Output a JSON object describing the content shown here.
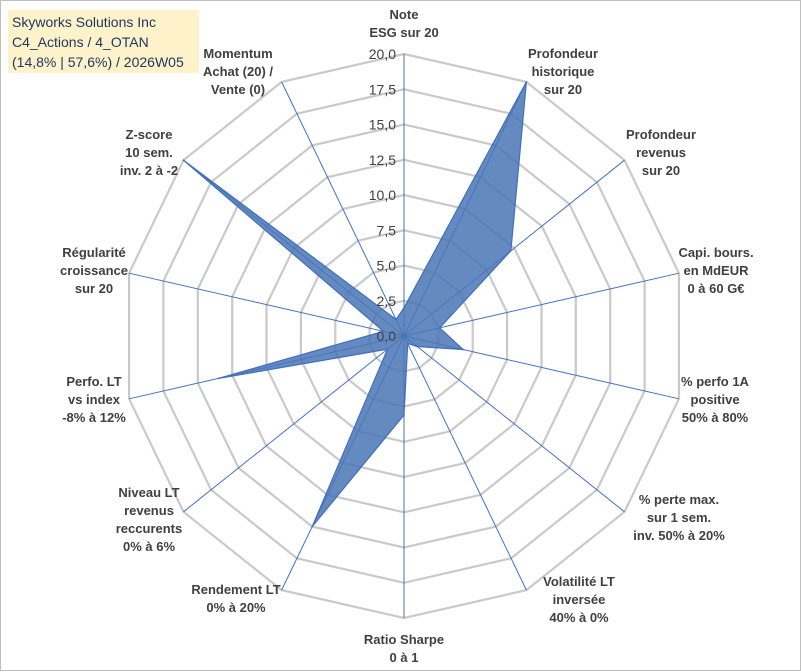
{
  "title_box": {
    "line1": "Skyworks Solutions Inc",
    "line2": "C4_Actions / 4_OTAN",
    "line3": "(14,8% | 57,6%) / 2026W05"
  },
  "chart_data": {
    "type": "radar",
    "title": "Skyworks Solutions Inc",
    "rmax": 20,
    "grid_step": 2.5,
    "tick_labels": [
      "0,0",
      "2,5",
      "5,0",
      "7,5",
      "10,0",
      "12,5",
      "15,0",
      "17,5",
      "20,0"
    ],
    "axes": [
      {
        "label": [
          "Note",
          "ESG sur 20"
        ],
        "value": 2
      },
      {
        "label": [
          "Profondeur",
          "historique",
          "sur 20"
        ],
        "value": 20
      },
      {
        "label": [
          "Profondeur",
          "revenus",
          "sur 20"
        ],
        "value": 9.7
      },
      {
        "label": [
          "Capi. bours.",
          "en MdEUR",
          "0 à 60 G€"
        ],
        "value": 2.6
      },
      {
        "label": [
          "% perfo 1A",
          "positive",
          "50% à 80%"
        ],
        "value": 4.3
      },
      {
        "label": [
          "% perte max.",
          "sur 1 sem.",
          "inv. 50% à 20%"
        ],
        "value": 1.2
      },
      {
        "label": [
          "Volatilité LT",
          "inversée",
          "40% à 0%"
        ],
        "value": 0.6
      },
      {
        "label": [
          "Ratio Sharpe",
          "0 à 1"
        ],
        "value": 5.6
      },
      {
        "label": [
          "Rendement LT",
          "0% à 20%"
        ],
        "value": 15
      },
      {
        "label": [
          "Niveau LT",
          "revenus",
          "reccurents",
          "0% à 6%"
        ],
        "value": 1.5
      },
      {
        "label": [
          "Perfo. LT",
          "vs index",
          "-8% à 12%"
        ],
        "value": 13.5
      },
      {
        "label": [
          "Régularité",
          "croissance",
          "sur 20"
        ],
        "value": 1.5
      },
      {
        "label": [
          "Z-score",
          "10 sem.",
          "inv. 2 à -2"
        ],
        "value": 20
      },
      {
        "label": [
          "Momentum",
          "Achat (20) /",
          "Vente (0)"
        ],
        "value": 1.3
      }
    ],
    "colors": {
      "grid": "#c9c9c9",
      "spoke": "#4472c4",
      "fill": "#4a76b5",
      "stroke": "#3f6fbf"
    }
  }
}
